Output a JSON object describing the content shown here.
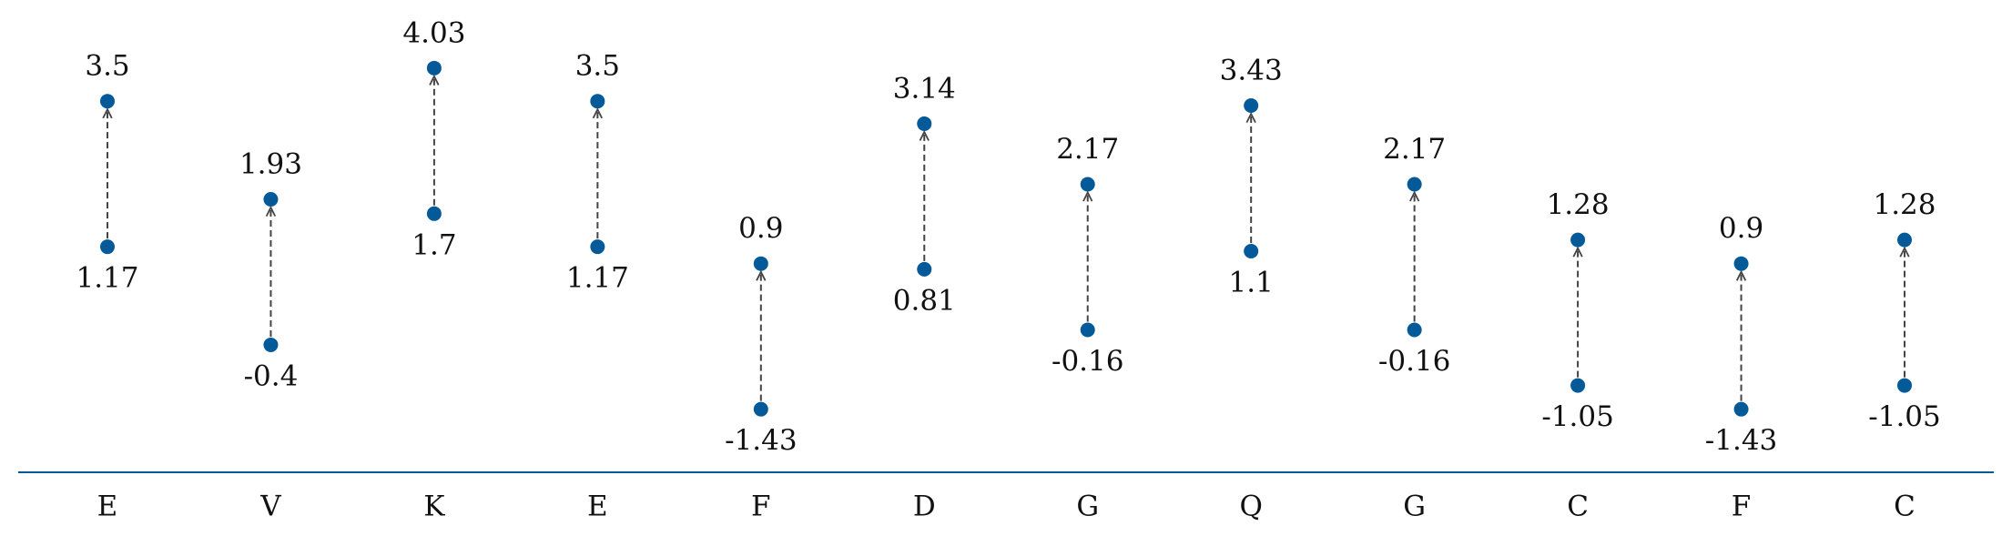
{
  "chart_data": {
    "type": "dumbbell",
    "categories": [
      "E",
      "V",
      "K",
      "E",
      "F",
      "D",
      "G",
      "Q",
      "G",
      "C",
      "F",
      "C"
    ],
    "start": [
      1.17,
      -0.4,
      1.7,
      1.17,
      -1.43,
      0.81,
      -0.16,
      1.1,
      -0.16,
      -1.05,
      -1.43,
      -1.05
    ],
    "end": [
      3.5,
      1.93,
      4.03,
      3.5,
      0.9,
      3.14,
      2.17,
      3.43,
      2.17,
      1.28,
      0.9,
      1.28
    ],
    "color": "#045a99",
    "ylim": [
      -2.44,
      5.12
    ]
  }
}
